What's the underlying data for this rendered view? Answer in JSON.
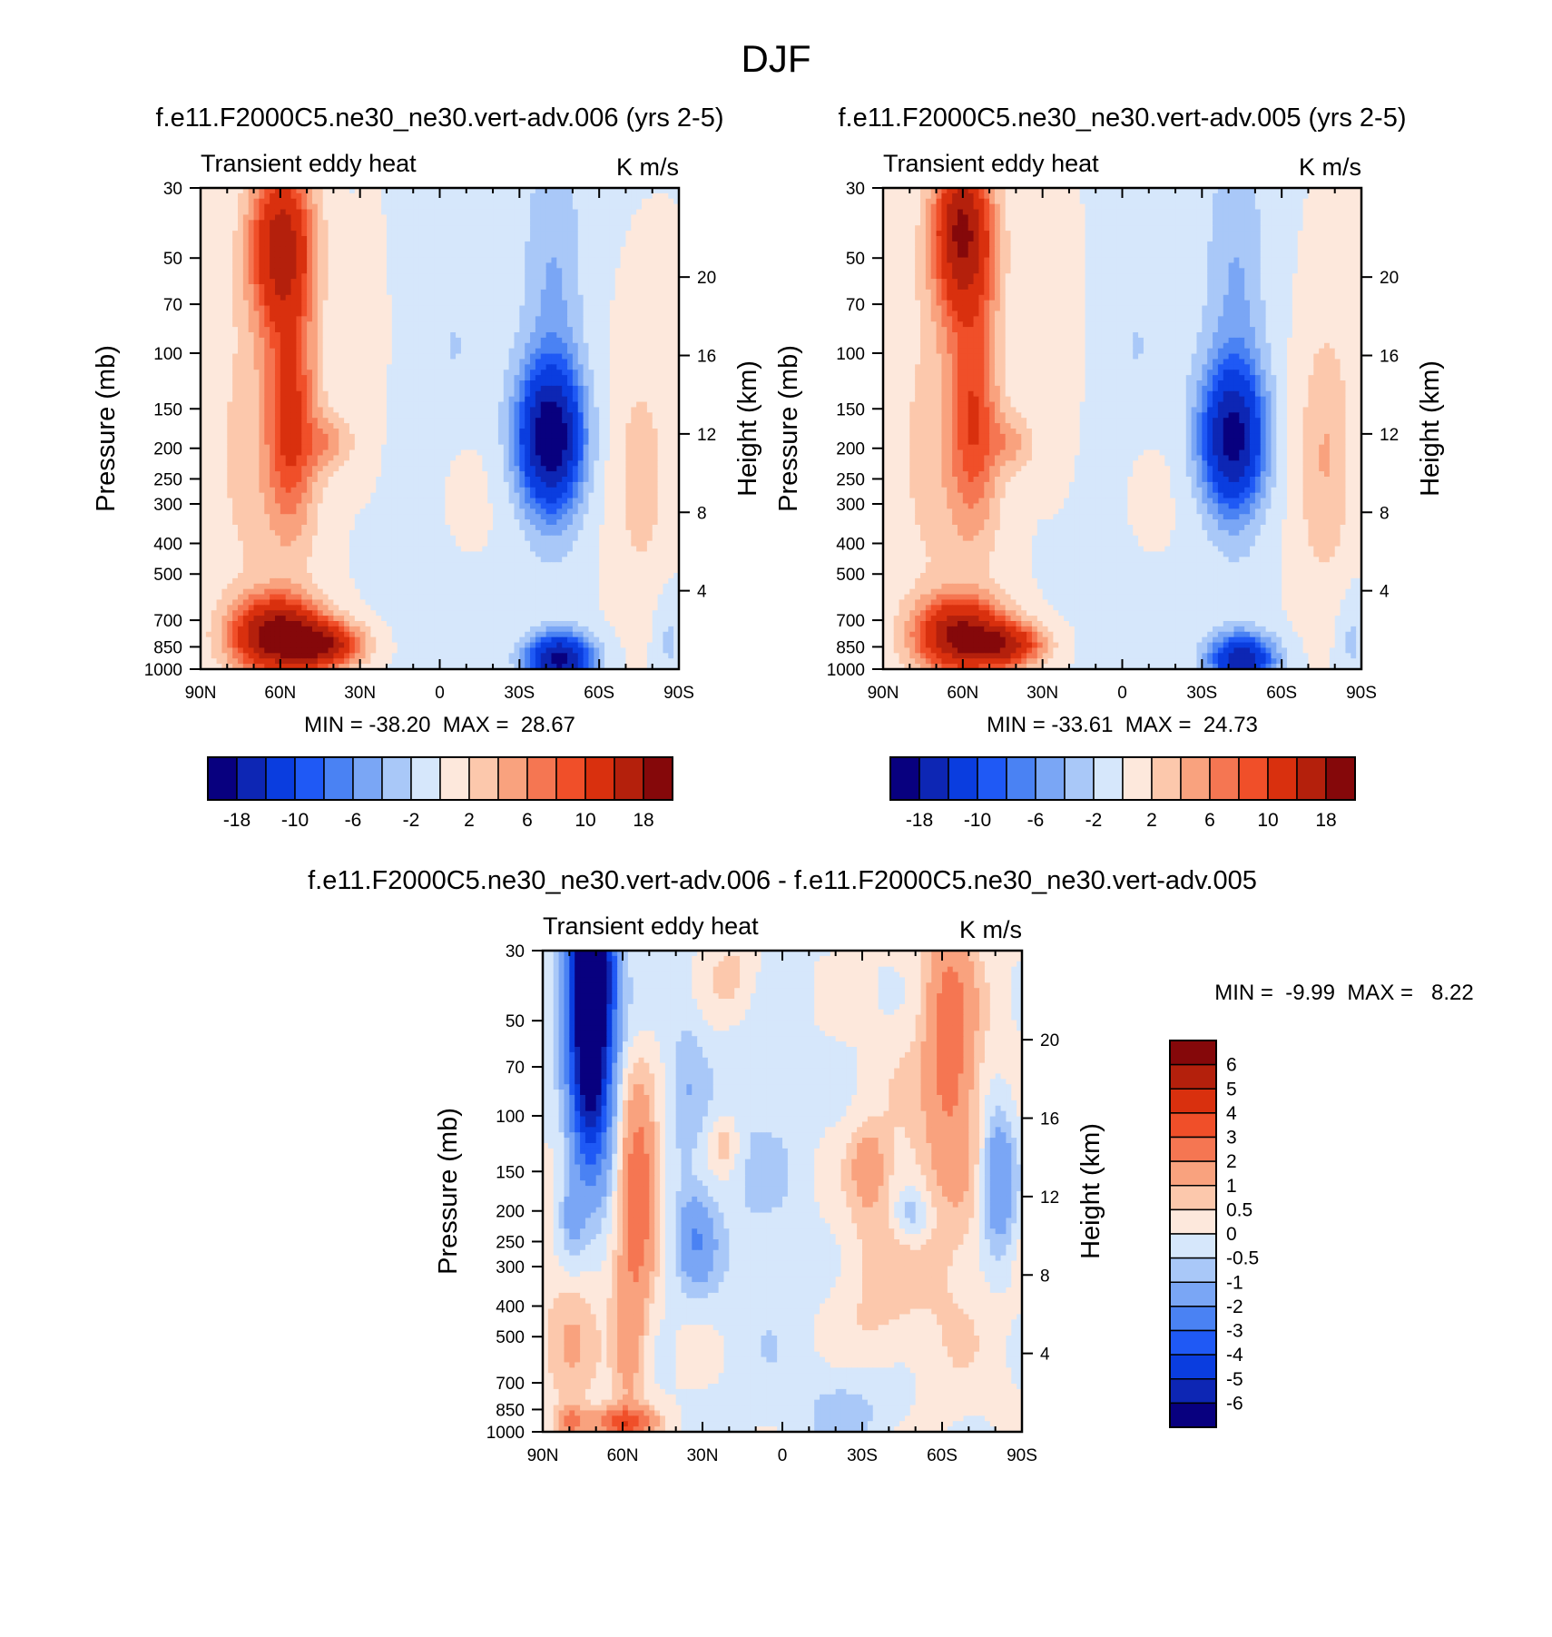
{
  "figure": {
    "title": "DJF",
    "background": "#ffffff"
  },
  "chart_data": [
    {
      "type": "heatmap",
      "subtype": "latitude-pressure contour",
      "title": "f.e11.F2000C5.ne30_ne30.vert-adv.006 (yrs 2-5)",
      "left_label": "Transient eddy heat",
      "right_label": "K m/s",
      "xlabel": "",
      "ylabel": "Pressure (mb)",
      "y2label": "Height (km)",
      "x_ticks": [
        "90N",
        "60N",
        "30N",
        "0",
        "30S",
        "60S",
        "90S"
      ],
      "x_range": [
        90,
        -90
      ],
      "y_ticks": [
        30,
        50,
        70,
        100,
        150,
        200,
        250,
        300,
        400,
        500,
        700,
        850,
        1000
      ],
      "y_range": [
        30,
        1000
      ],
      "y_scale": "log",
      "y2_ticks": [
        4,
        8,
        12,
        16,
        20
      ],
      "stats": "MIN = -38.20  MAX =  28.67",
      "min": -38.2,
      "max": 28.67,
      "colorbar": {
        "orientation": "horizontal",
        "levels": [
          -18,
          -14,
          -10,
          -8,
          -6,
          -4,
          -2,
          0,
          2,
          4,
          6,
          8,
          10,
          14,
          18
        ],
        "tick_labels": [
          "-18",
          "-10",
          "-6",
          "-2",
          "2",
          "6",
          "10",
          "18"
        ],
        "colors": [
          "#08007f",
          "#0d26b4",
          "#0a3ddf",
          "#1f59f5",
          "#4a82f3",
          "#7aa6f5",
          "#a9c8f8",
          "#d6e7fb",
          "#fde8dc",
          "#fcc8ac",
          "#f9a27e",
          "#f57652",
          "#f04f29",
          "#d9300e",
          "#b4200c",
          "#85080a"
        ]
      },
      "features": [
        {
          "lat": 72,
          "p": 700,
          "value": 22
        },
        {
          "lat": 48,
          "p": 850,
          "value": 28.67
        },
        {
          "lat": 64,
          "p": 45,
          "value": 16
        },
        {
          "lat": 60,
          "p": 180,
          "value": 14
        },
        {
          "lat": -50,
          "p": 200,
          "value": -18
        },
        {
          "lat": -48,
          "p": 850,
          "value": -16
        },
        {
          "lat": -65,
          "p": 230,
          "value": 2
        }
      ]
    },
    {
      "type": "heatmap",
      "subtype": "latitude-pressure contour",
      "title": "f.e11.F2000C5.ne30_ne30.vert-adv.005 (yrs 2-5)",
      "left_label": "Transient eddy heat",
      "right_label": "K m/s",
      "xlabel": "",
      "ylabel": "Pressure (mb)",
      "y2label": "Height (km)",
      "x_ticks": [
        "90N",
        "60N",
        "30N",
        "0",
        "30S",
        "60S",
        "90S"
      ],
      "x_range": [
        90,
        -90
      ],
      "y_ticks": [
        30,
        50,
        70,
        100,
        150,
        200,
        250,
        300,
        400,
        500,
        700,
        850,
        1000
      ],
      "y_range": [
        30,
        1000
      ],
      "y_scale": "log",
      "y2_ticks": [
        4,
        8,
        12,
        16,
        20
      ],
      "stats": "MIN = -33.61  MAX =  24.73",
      "min": -33.61,
      "max": 24.73,
      "colorbar": {
        "orientation": "horizontal",
        "levels": [
          -18,
          -14,
          -10,
          -8,
          -6,
          -4,
          -2,
          0,
          2,
          4,
          6,
          8,
          10,
          14,
          18
        ],
        "tick_labels": [
          "-18",
          "-10",
          "-6",
          "-2",
          "2",
          "6",
          "10",
          "18"
        ],
        "colors": [
          "#08007f",
          "#0d26b4",
          "#0a3ddf",
          "#1f59f5",
          "#4a82f3",
          "#7aa6f5",
          "#a9c8f8",
          "#d6e7fb",
          "#fde8dc",
          "#fcc8ac",
          "#f9a27e",
          "#f57652",
          "#f04f29",
          "#d9300e",
          "#b4200c",
          "#85080a"
        ]
      },
      "features": [
        {
          "lat": 72,
          "p": 700,
          "value": 20
        },
        {
          "lat": 48,
          "p": 850,
          "value": 24.73
        },
        {
          "lat": 66,
          "p": 40,
          "value": 20
        },
        {
          "lat": 60,
          "p": 180,
          "value": 12
        },
        {
          "lat": -50,
          "p": 200,
          "value": -16
        },
        {
          "lat": -48,
          "p": 850,
          "value": -14
        },
        {
          "lat": -72,
          "p": 230,
          "value": 2
        }
      ]
    },
    {
      "type": "heatmap",
      "subtype": "latitude-pressure contour (difference)",
      "title": "f.e11.F2000C5.ne30_ne30.vert-adv.006 - f.e11.F2000C5.ne30_ne30.vert-adv.005",
      "left_label": "Transient eddy heat",
      "right_label": "K m/s",
      "xlabel": "",
      "ylabel": "Pressure (mb)",
      "y2label": "Height (km)",
      "x_ticks": [
        "90N",
        "60N",
        "30N",
        "0",
        "30S",
        "60S",
        "90S"
      ],
      "x_range": [
        90,
        -90
      ],
      "y_ticks": [
        30,
        50,
        70,
        100,
        150,
        200,
        250,
        300,
        400,
        500,
        700,
        850,
        1000
      ],
      "y_range": [
        30,
        1000
      ],
      "y_scale": "log",
      "y2_ticks": [
        4,
        8,
        12,
        16,
        20
      ],
      "stats": "MIN =  -9.99  MAX =   8.22",
      "min": -9.99,
      "max": 8.22,
      "colorbar": {
        "orientation": "vertical",
        "levels": [
          -6,
          -5,
          -4,
          -3,
          -2,
          -1,
          -0.5,
          0,
          0.5,
          1,
          2,
          3,
          4,
          5,
          6
        ],
        "tick_labels": [
          "6",
          "5",
          "4",
          "3",
          "2",
          "1",
          "0.5",
          "0",
          "-0.5",
          "-1",
          "-2",
          "-3",
          "-4",
          "-5",
          "-6"
        ],
        "colors": [
          "#08007f",
          "#0d26b4",
          "#0a3ddf",
          "#1f59f5",
          "#4a82f3",
          "#7aa6f5",
          "#a9c8f8",
          "#d6e7fb",
          "#fde8dc",
          "#fcc8ac",
          "#f9a27e",
          "#f57652",
          "#f04f29",
          "#d9300e",
          "#b4200c",
          "#85080a"
        ]
      },
      "features": [
        {
          "lat": 70,
          "p": 45,
          "value": -9.99
        },
        {
          "lat": 52,
          "p": 160,
          "value": 3
        },
        {
          "lat": -60,
          "p": 60,
          "value": 2
        },
        {
          "lat": -82,
          "p": 180,
          "value": -2
        },
        {
          "lat": 60,
          "p": 950,
          "value": 3
        }
      ]
    }
  ]
}
